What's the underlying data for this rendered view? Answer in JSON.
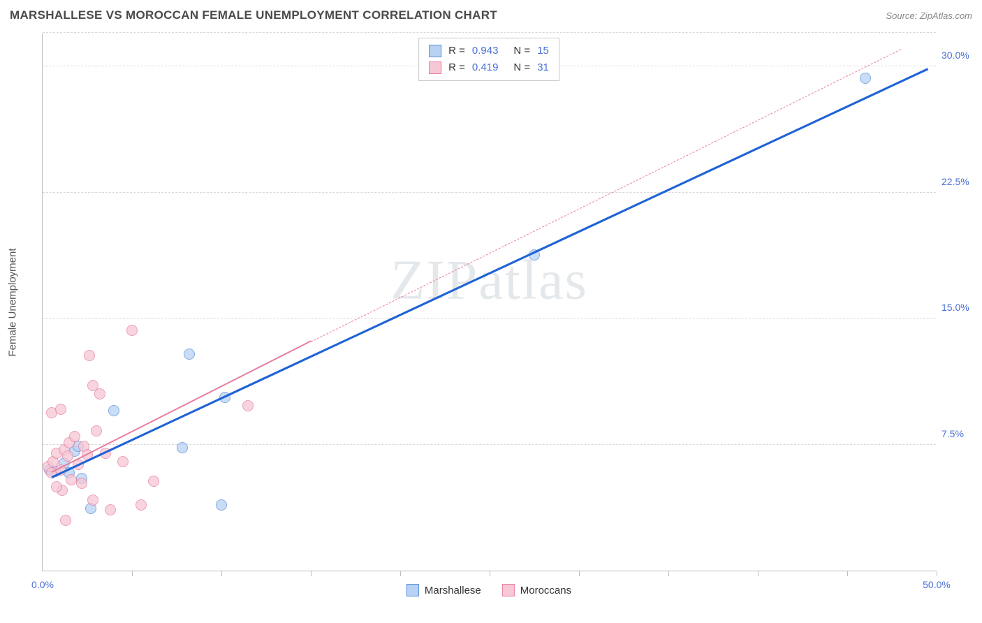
{
  "header": {
    "title": "MARSHALLESE VS MOROCCAN FEMALE UNEMPLOYMENT CORRELATION CHART",
    "source": "Source: ZipAtlas.com"
  },
  "chart": {
    "type": "scatter",
    "y_label": "Female Unemployment",
    "xlim": [
      0,
      50
    ],
    "ylim": [
      0,
      32
    ],
    "x_tick_step": 5,
    "x_labels": [
      {
        "value": 0,
        "text": "0.0%"
      },
      {
        "value": 50,
        "text": "50.0%"
      }
    ],
    "y_labels": [
      {
        "value": 7.5,
        "text": "7.5%"
      },
      {
        "value": 15.0,
        "text": "15.0%"
      },
      {
        "value": 22.5,
        "text": "22.5%"
      },
      {
        "value": 30.0,
        "text": "30.0%"
      }
    ],
    "grid_color": "#d8d8d8",
    "axis_color": "#bdbdbd",
    "background_color": "#ffffff",
    "marker_radius": 8,
    "series": [
      {
        "name": "Marshallese",
        "color_fill": "#b9d2f4",
        "color_border": "#5a8fd8",
        "r": "0.943",
        "n": "15",
        "points": [
          [
            0.4,
            6.0
          ],
          [
            0.7,
            5.9
          ],
          [
            1.2,
            6.4
          ],
          [
            1.5,
            5.8
          ],
          [
            1.8,
            7.1
          ],
          [
            2.2,
            5.5
          ],
          [
            2.7,
            3.7
          ],
          [
            2.0,
            7.4
          ],
          [
            4.0,
            9.5
          ],
          [
            8.2,
            12.9
          ],
          [
            7.8,
            7.3
          ],
          [
            10.2,
            10.3
          ],
          [
            10.0,
            3.9
          ],
          [
            27.5,
            18.8
          ],
          [
            46.0,
            29.3
          ]
        ],
        "trend": {
          "x1": 0.5,
          "y1": 5.5,
          "x2": 49.5,
          "y2": 29.8,
          "width": 2.5,
          "dash": false
        }
      },
      {
        "name": "Moroccans",
        "color_fill": "#f6c7d4",
        "color_border": "#e87ea1",
        "r": "0.419",
        "n": "31",
        "points": [
          [
            0.3,
            6.2
          ],
          [
            0.5,
            5.8
          ],
          [
            0.6,
            6.5
          ],
          [
            0.8,
            7.0
          ],
          [
            1.0,
            6.0
          ],
          [
            1.2,
            7.2
          ],
          [
            1.1,
            4.8
          ],
          [
            1.4,
            6.8
          ],
          [
            1.5,
            7.6
          ],
          [
            1.6,
            5.4
          ],
          [
            1.8,
            8.0
          ],
          [
            2.0,
            6.3
          ],
          [
            2.2,
            5.2
          ],
          [
            2.3,
            7.4
          ],
          [
            2.5,
            6.9
          ],
          [
            0.5,
            9.4
          ],
          [
            1.0,
            9.6
          ],
          [
            2.8,
            11.0
          ],
          [
            3.2,
            10.5
          ],
          [
            2.6,
            12.8
          ],
          [
            5.0,
            14.3
          ],
          [
            3.5,
            7.0
          ],
          [
            4.5,
            6.5
          ],
          [
            6.2,
            5.3
          ],
          [
            3.8,
            3.6
          ],
          [
            5.5,
            3.9
          ],
          [
            1.3,
            3.0
          ],
          [
            2.8,
            4.2
          ],
          [
            11.5,
            9.8
          ],
          [
            3.0,
            8.3
          ],
          [
            0.8,
            5.0
          ]
        ],
        "trend": {
          "x1": 0.5,
          "y1": 5.8,
          "x2": 15.0,
          "y2": 13.6,
          "width": 2,
          "dash": false
        },
        "trend_ext": {
          "x1": 15.0,
          "y1": 13.6,
          "x2": 48.0,
          "y2": 31.0,
          "width": 1,
          "dash": true
        }
      }
    ],
    "watermark": "ZIPatlas",
    "bottom_legend": [
      "Marshallese",
      "Moroccans"
    ]
  }
}
